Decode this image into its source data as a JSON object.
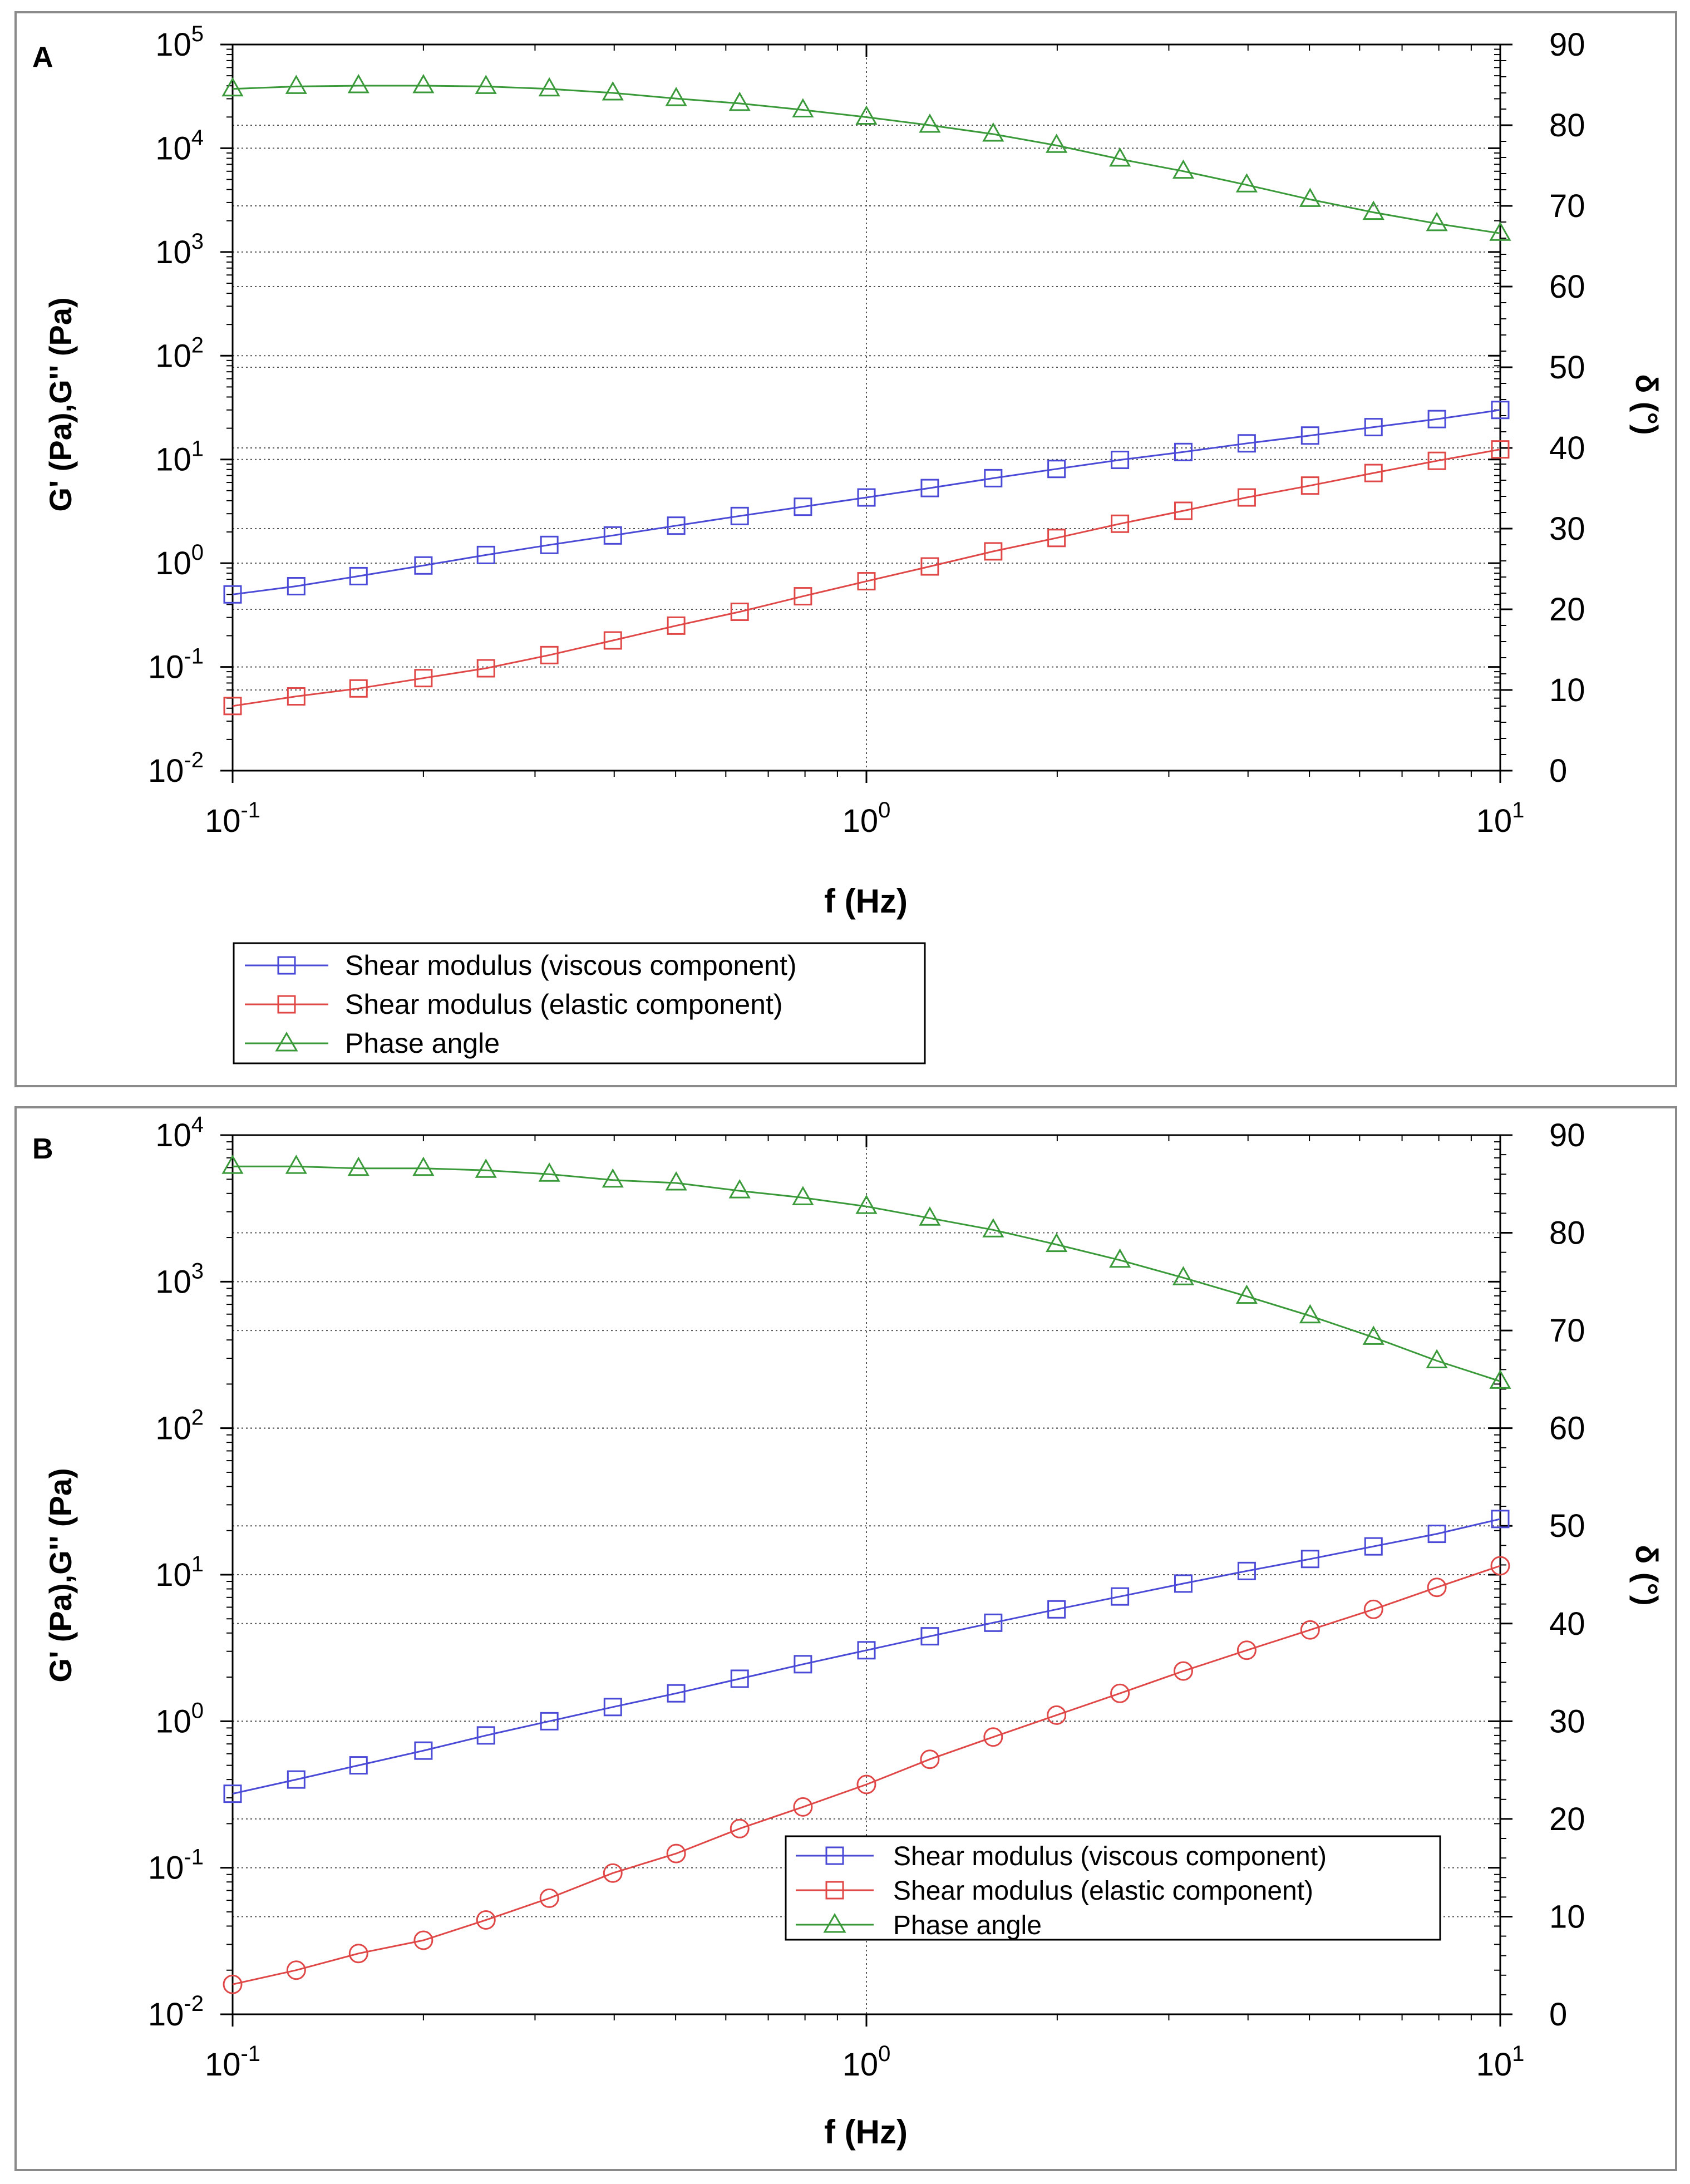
{
  "figure": {
    "panels": [
      {
        "letter": "A",
        "xlabel": "f (Hz)",
        "ylabel_left": "G' (Pa),G'' (Pa)",
        "ylabel_right": "δ (°)",
        "legend": [
          "Shear modulus (viscous component)",
          "Shear modulus (elastic component)",
          "Phase angle"
        ]
      },
      {
        "letter": "B",
        "xlabel": "f (Hz)",
        "ylabel_left": "G' (Pa),G'' (Pa)",
        "ylabel_right": "δ (°)",
        "legend": [
          "Shear modulus (viscous component)",
          "Shear modulus (elastic component)",
          "Phase angle"
        ]
      }
    ]
  },
  "chart_data": [
    {
      "type": "line",
      "panel": "A",
      "xlabel": "f (Hz)",
      "ylabel": "G' (Pa),G'' (Pa)",
      "y2label": "δ (°)",
      "x_scale": "log",
      "y_scale": "log",
      "xlim": [
        0.1,
        10
      ],
      "ylim": [
        0.01,
        100000
      ],
      "y2lim": [
        0,
        90
      ],
      "x_ticks": [
        0.1,
        1,
        10
      ],
      "y_ticks": [
        0.01,
        0.1,
        1,
        10,
        100,
        1000,
        10000,
        100000
      ],
      "y2_ticks": [
        0,
        10,
        20,
        30,
        40,
        50,
        60,
        70,
        80,
        90
      ],
      "legend_position": "bottom-left, below plot",
      "grid": true,
      "x": [
        0.1,
        0.126,
        0.158,
        0.2,
        0.251,
        0.316,
        0.398,
        0.501,
        0.631,
        0.794,
        1.0,
        1.259,
        1.585,
        1.995,
        2.512,
        3.162,
        3.981,
        5.012,
        6.31,
        7.943,
        10.0
      ],
      "series": [
        {
          "name": "Shear modulus (viscous component)",
          "axis": "left",
          "color": "#4a4ad6",
          "marker": "square",
          "values": [
            0.5,
            0.6,
            0.75,
            0.95,
            1.2,
            1.5,
            1.85,
            2.3,
            2.85,
            3.5,
            4.3,
            5.3,
            6.6,
            8.1,
            9.9,
            11.8,
            14.3,
            17.0,
            20.5,
            24.5,
            30.0
          ]
        },
        {
          "name": "Shear modulus (elastic component)",
          "axis": "left",
          "color": "#e04848",
          "marker": "square",
          "values": [
            0.042,
            0.052,
            0.062,
            0.078,
            0.097,
            0.13,
            0.18,
            0.25,
            0.34,
            0.48,
            0.67,
            0.93,
            1.3,
            1.75,
            2.4,
            3.2,
            4.3,
            5.6,
            7.4,
            9.7,
            12.5
          ]
        },
        {
          "name": "Phase angle",
          "axis": "right",
          "color": "#3a9a3a",
          "marker": "triangle",
          "values": [
            84.5,
            84.8,
            84.9,
            84.9,
            84.8,
            84.5,
            84.0,
            83.3,
            82.7,
            81.9,
            81.0,
            80.0,
            78.9,
            77.5,
            75.8,
            74.3,
            72.6,
            70.8,
            69.2,
            67.8,
            66.6
          ]
        }
      ]
    },
    {
      "type": "line",
      "panel": "B",
      "xlabel": "f (Hz)",
      "ylabel": "G' (Pa),G'' (Pa)",
      "y2label": "δ (°)",
      "x_scale": "log",
      "y_scale": "log",
      "xlim": [
        0.1,
        10
      ],
      "ylim": [
        0.01,
        10000
      ],
      "y2lim": [
        0,
        90
      ],
      "x_ticks": [
        0.1,
        1,
        10
      ],
      "y_ticks": [
        0.01,
        0.1,
        1,
        10,
        100,
        1000,
        10000
      ],
      "y2_ticks": [
        0,
        10,
        20,
        30,
        40,
        50,
        60,
        70,
        80,
        90
      ],
      "legend_position": "bottom-right, inside plot",
      "grid": true,
      "x": [
        0.1,
        0.126,
        0.158,
        0.2,
        0.251,
        0.316,
        0.398,
        0.501,
        0.631,
        0.794,
        1.0,
        1.259,
        1.585,
        1.995,
        2.512,
        3.162,
        3.981,
        5.012,
        6.31,
        7.943,
        10.0
      ],
      "series": [
        {
          "name": "Shear modulus (viscous component)",
          "axis": "left",
          "color": "#4a4ad6",
          "marker": "square",
          "values": [
            0.32,
            0.4,
            0.5,
            0.63,
            0.8,
            1.0,
            1.25,
            1.55,
            1.95,
            2.45,
            3.05,
            3.8,
            4.7,
            5.8,
            7.1,
            8.7,
            10.6,
            12.8,
            15.6,
            19.0,
            24.0
          ]
        },
        {
          "name": "Shear modulus (elastic component)",
          "axis": "left",
          "color": "#e04848",
          "marker": "circle",
          "values": [
            0.016,
            0.02,
            0.026,
            0.032,
            0.044,
            0.062,
            0.092,
            0.125,
            0.185,
            0.26,
            0.37,
            0.55,
            0.78,
            1.1,
            1.55,
            2.2,
            3.05,
            4.2,
            5.8,
            8.2,
            11.5
          ]
        },
        {
          "name": "Phase angle",
          "axis": "right",
          "color": "#3a9a3a",
          "marker": "triangle",
          "values": [
            86.8,
            86.8,
            86.6,
            86.6,
            86.4,
            86.0,
            85.4,
            85.1,
            84.3,
            83.6,
            82.7,
            81.5,
            80.3,
            78.8,
            77.2,
            75.4,
            73.5,
            71.5,
            69.3,
            66.9,
            64.8
          ]
        }
      ]
    }
  ]
}
